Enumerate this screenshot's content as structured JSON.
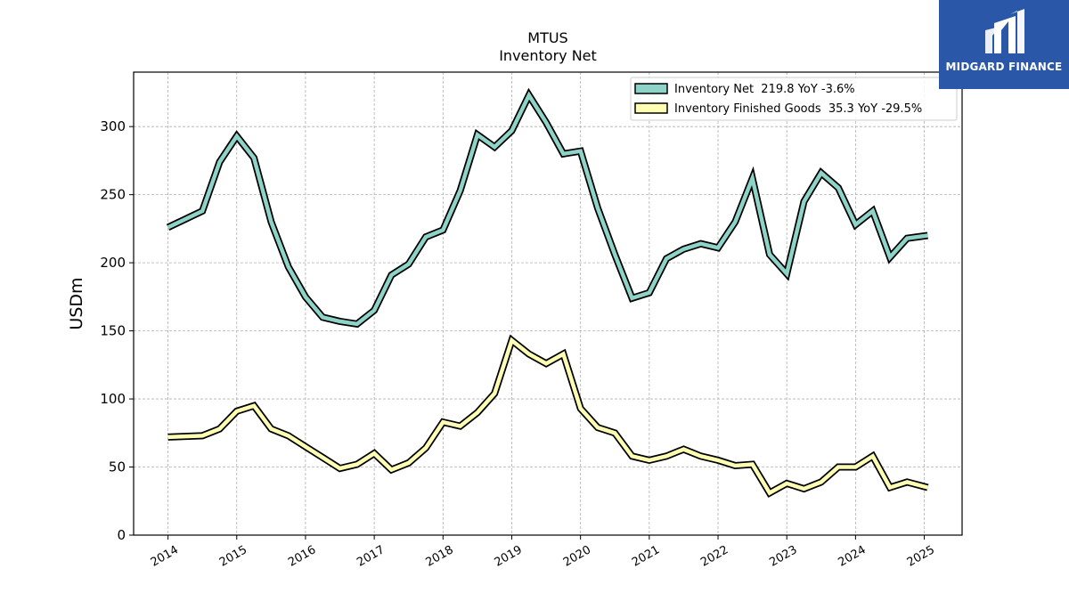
{
  "chart_data": {
    "type": "line",
    "title": "MTUS",
    "subtitle": "Inventory Net",
    "xlabel": "",
    "ylabel": "USDm",
    "ylim": [
      0,
      340
    ],
    "xlim": [
      2013.5,
      2025.55
    ],
    "yticks": [
      0,
      50,
      100,
      150,
      200,
      250,
      300
    ],
    "xticks": [
      2014,
      2015,
      2016,
      2017,
      2018,
      2019,
      2020,
      2021,
      2022,
      2023,
      2024,
      2025
    ],
    "grid": true,
    "legend_position": "top-right",
    "series": [
      {
        "name": "Inventory Net  219.8 YoY -3.6%",
        "color": "#8dd3c7",
        "points": [
          [
            2014.0,
            226
          ],
          [
            2014.5,
            238
          ],
          [
            2014.75,
            274
          ],
          [
            2015.0,
            293
          ],
          [
            2015.25,
            277
          ],
          [
            2015.5,
            230
          ],
          [
            2015.75,
            197
          ],
          [
            2016.0,
            175
          ],
          [
            2016.25,
            160
          ],
          [
            2016.5,
            157
          ],
          [
            2016.75,
            155
          ],
          [
            2017.0,
            165
          ],
          [
            2017.25,
            191
          ],
          [
            2017.5,
            199
          ],
          [
            2017.75,
            219
          ],
          [
            2018.0,
            224
          ],
          [
            2018.25,
            253
          ],
          [
            2018.5,
            294
          ],
          [
            2018.75,
            285
          ],
          [
            2019.0,
            297
          ],
          [
            2019.25,
            323
          ],
          [
            2019.5,
            303
          ],
          [
            2019.75,
            280
          ],
          [
            2020.0,
            282
          ],
          [
            2020.25,
            240
          ],
          [
            2020.5,
            206
          ],
          [
            2020.75,
            174
          ],
          [
            2021.0,
            178
          ],
          [
            2021.25,
            203
          ],
          [
            2021.5,
            210
          ],
          [
            2021.75,
            214
          ],
          [
            2022.0,
            211
          ],
          [
            2022.25,
            230
          ],
          [
            2022.5,
            262
          ],
          [
            2022.75,
            206
          ],
          [
            2023.0,
            192
          ],
          [
            2023.25,
            245
          ],
          [
            2023.5,
            266
          ],
          [
            2023.75,
            255
          ],
          [
            2024.0,
            228
          ],
          [
            2024.25,
            238
          ],
          [
            2024.5,
            204
          ],
          [
            2024.75,
            218
          ],
          [
            2025.05,
            220
          ]
        ]
      },
      {
        "name": "Inventory Finished Goods  35.3 YoY -29.5%",
        "color": "#ffffb3",
        "points": [
          [
            2014.0,
            72
          ],
          [
            2014.5,
            73
          ],
          [
            2014.75,
            78
          ],
          [
            2015.0,
            91
          ],
          [
            2015.25,
            95
          ],
          [
            2015.5,
            78
          ],
          [
            2015.75,
            73
          ],
          [
            2016.0,
            65
          ],
          [
            2016.25,
            57
          ],
          [
            2016.5,
            49
          ],
          [
            2016.75,
            52
          ],
          [
            2017.0,
            60
          ],
          [
            2017.25,
            48
          ],
          [
            2017.5,
            53
          ],
          [
            2017.75,
            64
          ],
          [
            2018.0,
            83
          ],
          [
            2018.25,
            80
          ],
          [
            2018.5,
            90
          ],
          [
            2018.75,
            104
          ],
          [
            2019.0,
            143
          ],
          [
            2019.25,
            133
          ],
          [
            2019.5,
            126
          ],
          [
            2019.75,
            133
          ],
          [
            2020.0,
            93
          ],
          [
            2020.25,
            79
          ],
          [
            2020.5,
            75
          ],
          [
            2020.75,
            58
          ],
          [
            2021.0,
            55
          ],
          [
            2021.25,
            58
          ],
          [
            2021.5,
            63
          ],
          [
            2021.75,
            58
          ],
          [
            2022.0,
            55
          ],
          [
            2022.25,
            51
          ],
          [
            2022.5,
            52
          ],
          [
            2022.75,
            31
          ],
          [
            2023.0,
            38
          ],
          [
            2023.25,
            34
          ],
          [
            2023.5,
            39
          ],
          [
            2023.75,
            50
          ],
          [
            2024.0,
            50
          ],
          [
            2024.25,
            58
          ],
          [
            2024.5,
            35
          ],
          [
            2024.75,
            39
          ],
          [
            2025.05,
            35
          ]
        ]
      }
    ]
  },
  "logo": {
    "text": "MIDGARD FINANCE",
    "background": "#2a57a8"
  }
}
